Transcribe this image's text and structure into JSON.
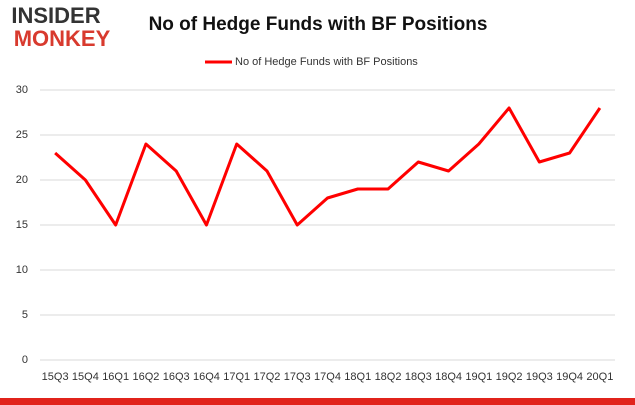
{
  "logo": {
    "line1": "INSIDER",
    "line2": "MONKEY"
  },
  "chart_data": {
    "type": "line",
    "title": "No of Hedge Funds with BF Positions",
    "categories": [
      "15Q3",
      "15Q4",
      "16Q1",
      "16Q2",
      "16Q3",
      "16Q4",
      "17Q1",
      "17Q2",
      "17Q3",
      "17Q4",
      "18Q1",
      "18Q2",
      "18Q3",
      "18Q4",
      "19Q1",
      "19Q2",
      "19Q3",
      "19Q4",
      "20Q1"
    ],
    "series": [
      {
        "name": "No of Hedge Funds with BF Positions",
        "color": "#ff0000",
        "values": [
          23,
          20,
          15,
          24,
          21,
          15,
          24,
          21,
          15,
          18,
          19,
          19,
          22,
          21,
          24,
          28,
          22,
          23,
          28
        ]
      }
    ],
    "ylim": [
      0,
      30
    ],
    "yticks": [
      0,
      5,
      10,
      15,
      20,
      25,
      30
    ],
    "grid": true,
    "legend": "top"
  }
}
